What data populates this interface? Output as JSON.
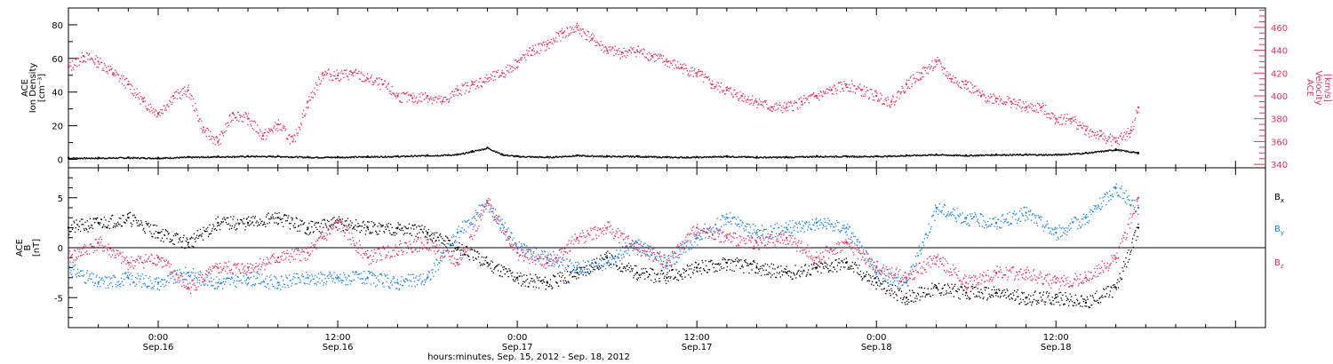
{
  "colors": {
    "axis": "#000000",
    "density": "#000000",
    "velocity": "#e8315a",
    "bx": "#000000",
    "by": "#1a82e0",
    "bz": "#e8315a"
  },
  "x_axis": {
    "tick_labels": [
      {
        "time": "0:00",
        "date": "Sep.16",
        "hour": 24
      },
      {
        "time": "12:00",
        "date": "Sep.16",
        "hour": 36
      },
      {
        "time": "0:00",
        "date": "Sep.17",
        "hour": 48
      },
      {
        "time": "12:00",
        "date": "Sep.17",
        "hour": 60
      },
      {
        "time": "0:00",
        "date": "Sep.18",
        "hour": 72
      },
      {
        "time": "12:00",
        "date": "Sep.18",
        "hour": 84
      }
    ],
    "title": "hours:minutes, Sep. 15, 2012 - Sep. 18, 2012"
  },
  "chart_data": [
    {
      "type": "scatter",
      "panel": "top",
      "xlim_hours": [
        18,
        98
      ],
      "left_axis": {
        "label_lines": [
          "ACE",
          "Ion Density",
          "[cm⁻³]"
        ],
        "ylim": [
          -5,
          90
        ],
        "ticks": [
          0,
          20,
          40,
          60,
          80
        ]
      },
      "right_axis": {
        "label_lines": [
          "ACE",
          "Velocity",
          "[km/s]"
        ],
        "ylim": [
          337,
          477
        ],
        "ticks": [
          340,
          360,
          380,
          400,
          420,
          440,
          460
        ]
      },
      "series": [
        {
          "name": "",
          "axis": "left",
          "color_key": "density",
          "x": [
            18,
            20,
            22,
            24,
            26,
            28,
            30,
            32,
            34,
            36,
            38,
            40,
            42,
            44,
            45,
            46,
            47,
            48,
            50,
            52,
            54,
            56,
            58,
            60,
            62,
            64,
            66,
            68,
            70,
            72,
            74,
            76,
            78,
            80,
            82,
            84,
            86,
            88,
            89.5
          ],
          "y": [
            1,
            1,
            1.2,
            1,
            1.5,
            1.8,
            2,
            2,
            1.5,
            1.5,
            1.8,
            2,
            2.5,
            3,
            5,
            7,
            3,
            2,
            1.5,
            2.5,
            2,
            2,
            1.5,
            1.5,
            2,
            1.5,
            1.5,
            2,
            2,
            2,
            2.5,
            3,
            2.5,
            3,
            3,
            3,
            4,
            6,
            4
          ]
        },
        {
          "name": "",
          "axis": "right",
          "color_key": "velocity",
          "x": [
            18,
            19,
            20,
            21,
            22,
            23,
            24,
            25,
            26,
            27,
            28,
            29,
            30,
            31,
            32,
            33,
            34,
            35,
            36,
            37,
            38,
            39,
            40,
            41,
            42,
            43,
            44,
            45,
            46,
            47,
            48,
            49,
            50,
            51,
            52,
            53,
            54,
            55,
            56,
            57,
            58,
            59,
            60,
            61,
            62,
            63,
            64,
            65,
            66,
            67,
            68,
            69,
            70,
            71,
            72,
            73,
            74,
            75,
            76,
            77,
            78,
            79,
            80,
            81,
            82,
            83,
            84,
            85,
            86,
            87,
            88,
            89,
            89.5
          ],
          "y": [
            425,
            435,
            430,
            420,
            410,
            395,
            385,
            400,
            405,
            370,
            360,
            385,
            380,
            365,
            375,
            360,
            395,
            420,
            418,
            420,
            415,
            410,
            400,
            398,
            400,
            395,
            405,
            410,
            415,
            420,
            430,
            440,
            445,
            455,
            460,
            450,
            440,
            438,
            440,
            435,
            430,
            425,
            420,
            410,
            405,
            400,
            395,
            390,
            390,
            395,
            400,
            405,
            410,
            405,
            400,
            395,
            410,
            420,
            430,
            415,
            410,
            400,
            398,
            395,
            390,
            390,
            380,
            380,
            370,
            365,
            360,
            370,
            390
          ]
        }
      ]
    },
    {
      "type": "scatter",
      "panel": "bottom",
      "xlim_hours": [
        18,
        98
      ],
      "left_axis": {
        "label_lines": [
          "ACE",
          "B",
          "[nT]"
        ],
        "ylim": [
          -8,
          8
        ],
        "ticks": [
          -5,
          0,
          5
        ]
      },
      "zero_line": true,
      "legend": {
        "placement": "right",
        "entries": [
          "B",
          "B",
          "B"
        ],
        "subscripts": [
          "x",
          "y",
          "z"
        ]
      },
      "series": [
        {
          "name": "Bx",
          "color_key": "bx",
          "x": [
            18,
            20,
            22,
            24,
            26,
            28,
            30,
            32,
            34,
            36,
            38,
            40,
            42,
            44,
            46,
            48,
            50,
            52,
            54,
            56,
            58,
            60,
            62,
            64,
            66,
            68,
            70,
            72,
            74,
            76,
            78,
            80,
            82,
            84,
            86,
            88,
            89.5
          ],
          "y": [
            2,
            2.5,
            3,
            1.5,
            0.5,
            2.5,
            2.5,
            3,
            2,
            2.5,
            2,
            2,
            1.5,
            0,
            -1.5,
            -3,
            -3.5,
            -2.5,
            -1,
            -2.5,
            -3,
            -2,
            -1.5,
            -2,
            -2.5,
            -2,
            -1.5,
            -3.5,
            -5,
            -4,
            -4.5,
            -4.5,
            -5,
            -5,
            -5.5,
            -4,
            2
          ]
        },
        {
          "name": "By",
          "color_key": "by",
          "x": [
            18,
            20,
            22,
            24,
            26,
            28,
            30,
            32,
            34,
            36,
            38,
            40,
            42,
            44,
            46,
            48,
            50,
            52,
            54,
            56,
            58,
            60,
            62,
            64,
            66,
            68,
            70,
            72,
            74,
            76,
            78,
            80,
            82,
            84,
            86,
            88,
            89.5
          ],
          "y": [
            -2,
            -3.5,
            -3,
            -3.5,
            -2.5,
            -3.5,
            -3,
            -3.5,
            -3,
            -3,
            -3,
            -3.5,
            -3,
            1.5,
            4.5,
            0,
            -1,
            -2,
            -1.5,
            0.5,
            -1.5,
            1,
            3,
            1.5,
            2,
            2.5,
            2,
            -2.5,
            -3.5,
            4,
            3,
            2.5,
            3.5,
            1.5,
            3,
            6,
            4
          ]
        },
        {
          "name": "Bz",
          "color_key": "bz",
          "x": [
            18,
            20,
            22,
            24,
            26,
            28,
            30,
            32,
            34,
            36,
            38,
            40,
            42,
            44,
            46,
            48,
            50,
            52,
            54,
            56,
            58,
            60,
            62,
            64,
            66,
            68,
            70,
            72,
            74,
            76,
            78,
            80,
            82,
            84,
            86,
            88,
            89.5
          ],
          "y": [
            -1,
            0.5,
            -1.5,
            -1,
            -4,
            -2,
            -2,
            -1,
            -0.5,
            2.5,
            -1,
            0,
            0.5,
            -1.5,
            4.5,
            -0.5,
            -1.5,
            1,
            2,
            0,
            -1.5,
            2,
            1,
            0.5,
            1,
            -1,
            0.5,
            -2,
            -3,
            -1,
            -3.5,
            -2.5,
            -2.5,
            -3.5,
            -3,
            -1,
            5
          ]
        }
      ]
    }
  ]
}
